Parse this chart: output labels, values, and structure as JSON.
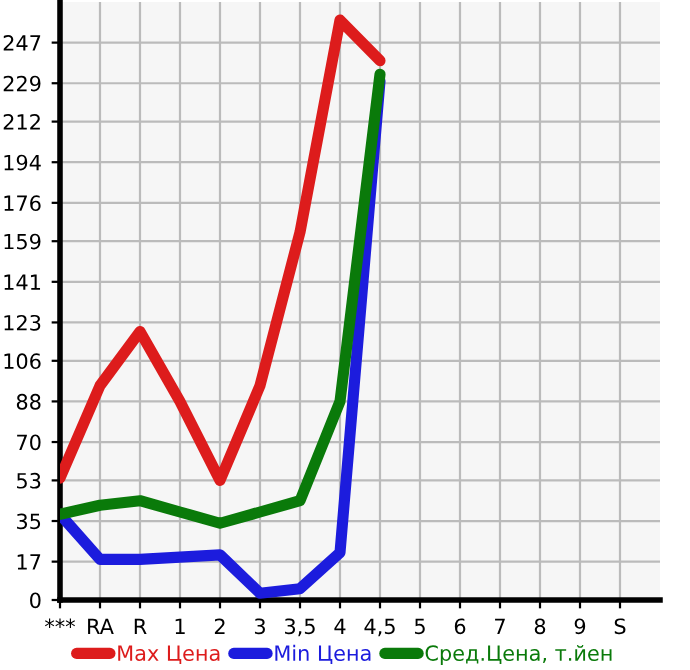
{
  "chart_data": {
    "type": "line",
    "categories": [
      "***",
      "RA",
      "R",
      "1",
      "2",
      "3",
      "3,5",
      "4",
      "4,5",
      "5",
      "6",
      "7",
      "8",
      "9",
      "S"
    ],
    "series": [
      {
        "name": "Max Цена",
        "color": "#dd1c1c",
        "values": [
          54,
          95,
          119,
          88,
          53,
          95,
          163,
          257,
          239,
          null,
          null,
          null,
          null,
          null,
          null
        ]
      },
      {
        "name": "Min Цена",
        "color": "#1c1cdd",
        "values": [
          38,
          18,
          18,
          19,
          20,
          3,
          5,
          21,
          230,
          null,
          null,
          null,
          null,
          null,
          null
        ]
      },
      {
        "name": "Сред.Цена, т.йен",
        "color": "#0a7a0a",
        "values": [
          38,
          42,
          44,
          39,
          34,
          39,
          44,
          88,
          233,
          null,
          null,
          null,
          null,
          null,
          null
        ]
      }
    ],
    "ylim": [
      0,
      265
    ],
    "yticks": [
      0,
      17,
      35,
      53,
      70,
      88,
      106,
      123,
      141,
      159,
      176,
      194,
      212,
      229,
      247
    ],
    "grid": true,
    "legend": "bottom",
    "marker": "none",
    "line_style": "solid"
  }
}
